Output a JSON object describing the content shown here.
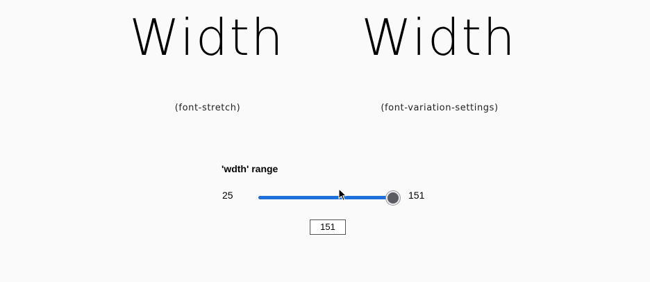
{
  "samples": {
    "left_text": "Width",
    "right_text": "Width"
  },
  "captions": {
    "left": "(font-stretch)",
    "right": "(font-variation-settings)"
  },
  "range": {
    "label": "'wdth' range",
    "min": 25,
    "max": 151,
    "value": 151,
    "min_label": "25",
    "max_label": "151",
    "value_display": "151"
  },
  "colors": {
    "background": "#fafafa",
    "slider_fill": "#1e6fd9",
    "slider_thumb": "#5b5b63"
  },
  "icons": {
    "cursor": "mouse-pointer-icon"
  }
}
